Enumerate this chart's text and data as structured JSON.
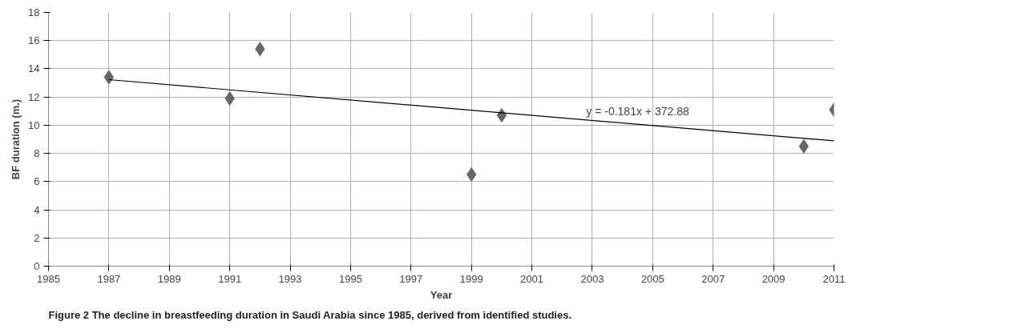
{
  "chart_data": {
    "type": "scatter",
    "xlabel": "Year",
    "ylabel": "BF duration (m.)",
    "x": [
      1987,
      1991,
      1992,
      1999,
      2000,
      2010,
      2011
    ],
    "series": [
      {
        "color": "#666666",
        "marker": "diamond",
        "values": [
          13.4,
          11.9,
          15.4,
          6.5,
          10.7,
          8.5,
          11.1
        ]
      },
      {
        "type": "line",
        "color": "#000000",
        "marker": "none",
        "x": [
          1987,
          2011
        ],
        "values": [
          13.23,
          8.89
        ]
      }
    ],
    "xlim": [
      1985,
      2011
    ],
    "xticks": [
      1985,
      1987,
      1989,
      1991,
      1993,
      1995,
      1997,
      1999,
      2001,
      2003,
      2005,
      2007,
      2009,
      2011
    ],
    "ylim": [
      0,
      18
    ],
    "yticks": [
      0,
      2,
      4,
      6,
      8,
      10,
      12,
      14,
      16,
      18
    ],
    "grid": true,
    "annotations": [
      "y = -0.181x + 372.88",
      "Figure 2 The decline in breastfeeding duration in Saudi Arabia since 1985, derived from identified studies."
    ]
  }
}
